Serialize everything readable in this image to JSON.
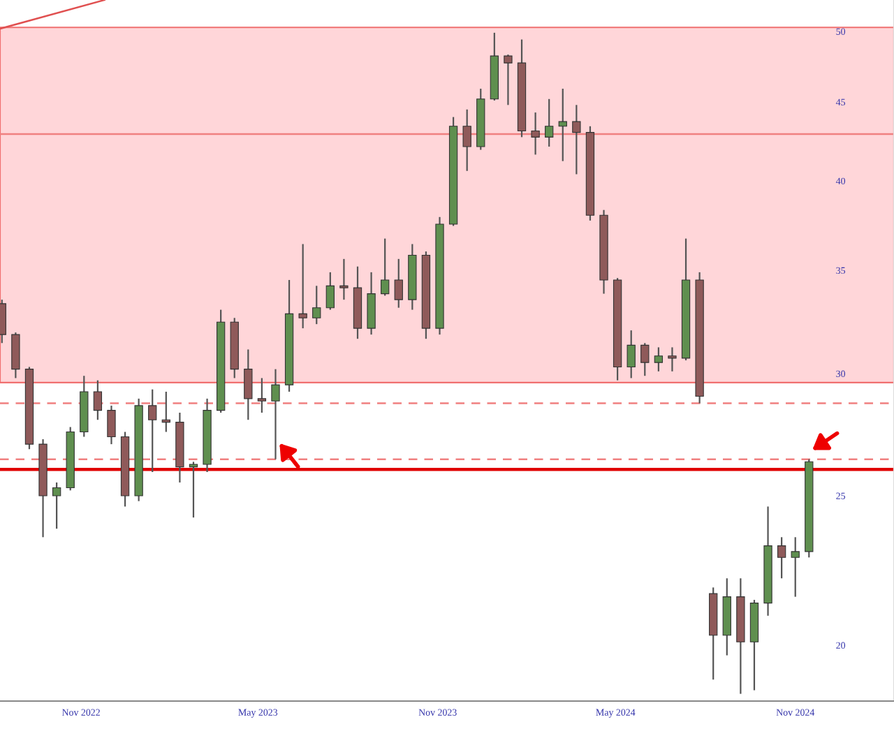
{
  "chart_data": {
    "type": "candlestick",
    "log": true,
    "x": [
      "2022-08-12",
      "2022-08-26",
      "2022-09-09",
      "2022-09-23",
      "2022-10-07",
      "2022-10-21",
      "2022-11-04",
      "2022-11-18",
      "2022-12-02",
      "2022-12-16",
      "2022-12-30",
      "2023-01-13",
      "2023-01-27",
      "2023-02-10",
      "2023-02-24",
      "2023-03-10",
      "2023-03-24",
      "2023-04-07",
      "2023-04-21",
      "2023-05-05",
      "2023-05-19",
      "2023-06-02",
      "2023-06-16",
      "2023-06-30",
      "2023-07-14",
      "2023-07-28",
      "2023-08-11",
      "2023-08-25",
      "2023-09-08",
      "2023-09-22",
      "2023-10-06",
      "2023-10-20",
      "2023-11-03",
      "2023-11-17",
      "2023-12-01",
      "2023-12-15",
      "2023-12-29",
      "2024-01-12",
      "2024-01-26",
      "2024-02-09",
      "2024-02-23",
      "2024-03-08",
      "2024-03-22",
      "2024-04-05",
      "2024-04-19",
      "2024-05-03",
      "2024-05-17",
      "2024-05-31",
      "2024-06-14",
      "2024-06-28",
      "2024-07-12",
      "2024-07-26",
      "2024-08-09",
      "2024-08-23",
      "2024-09-06",
      "2024-09-20",
      "2024-10-04",
      "2024-10-18",
      "2024-11-01",
      "2024-11-15"
    ],
    "ohlc": [
      [
        33.3,
        33.5,
        31.4,
        31.8
      ],
      [
        31.8,
        31.9,
        29.8,
        30.2
      ],
      [
        30.2,
        30.3,
        26.8,
        27.0
      ],
      [
        27.0,
        27.2,
        23.5,
        25.0
      ],
      [
        25.0,
        25.5,
        23.8,
        25.3
      ],
      [
        25.3,
        27.7,
        25.2,
        27.5
      ],
      [
        27.5,
        29.9,
        27.3,
        29.2
      ],
      [
        29.2,
        29.7,
        28.0,
        28.4
      ],
      [
        28.4,
        28.6,
        27.0,
        27.3
      ],
      [
        27.3,
        27.5,
        24.6,
        25.0
      ],
      [
        25.0,
        28.9,
        24.8,
        28.6
      ],
      [
        28.6,
        29.3,
        25.9,
        28.0
      ],
      [
        28.0,
        29.2,
        27.5,
        27.9
      ],
      [
        27.9,
        28.3,
        25.5,
        26.1
      ],
      [
        26.1,
        26.3,
        24.2,
        26.2
      ],
      [
        26.2,
        28.9,
        25.9,
        28.4
      ],
      [
        28.4,
        33.0,
        28.3,
        32.4
      ],
      [
        32.4,
        32.6,
        29.8,
        30.2
      ],
      [
        30.2,
        31.1,
        28.0,
        28.9
      ],
      [
        28.9,
        29.8,
        28.3,
        28.8
      ],
      [
        28.8,
        30.2,
        26.4,
        29.5
      ],
      [
        29.5,
        34.5,
        29.2,
        32.8
      ],
      [
        32.8,
        36.4,
        32.1,
        32.6
      ],
      [
        32.6,
        34.2,
        32.3,
        33.1
      ],
      [
        33.1,
        34.9,
        33.0,
        34.2
      ],
      [
        34.2,
        35.6,
        33.5,
        34.1
      ],
      [
        34.1,
        35.2,
        31.6,
        32.1
      ],
      [
        32.1,
        34.9,
        31.8,
        33.8
      ],
      [
        33.8,
        36.7,
        33.7,
        34.5
      ],
      [
        34.5,
        35.6,
        33.1,
        33.5
      ],
      [
        33.5,
        36.4,
        33.0,
        35.8
      ],
      [
        35.8,
        36.0,
        31.6,
        32.1
      ],
      [
        32.1,
        37.9,
        31.8,
        37.5
      ],
      [
        37.5,
        44.0,
        37.4,
        43.4
      ],
      [
        43.4,
        44.5,
        40.6,
        42.1
      ],
      [
        42.1,
        45.9,
        41.9,
        45.2
      ],
      [
        45.2,
        49.9,
        45.1,
        48.2
      ],
      [
        48.2,
        48.3,
        44.8,
        47.7
      ],
      [
        47.7,
        49.4,
        42.7,
        43.1
      ],
      [
        43.1,
        44.3,
        41.6,
        42.7
      ],
      [
        42.7,
        45.2,
        42.1,
        43.4
      ],
      [
        43.4,
        45.9,
        41.2,
        43.7
      ],
      [
        43.7,
        44.8,
        40.4,
        43.0
      ],
      [
        43.0,
        43.4,
        37.7,
        38.0
      ],
      [
        38.0,
        38.3,
        33.8,
        34.5
      ],
      [
        34.5,
        34.6,
        29.7,
        30.3
      ],
      [
        30.3,
        32.0,
        29.8,
        31.3
      ],
      [
        31.3,
        31.4,
        29.9,
        30.5
      ],
      [
        30.5,
        31.2,
        30.1,
        30.8
      ],
      [
        30.8,
        31.2,
        30.1,
        30.7
      ],
      [
        30.7,
        36.7,
        30.6,
        34.5
      ],
      [
        34.5,
        34.9,
        28.7,
        29.0
      ],
      [
        21.6,
        21.8,
        19.0,
        20.3
      ],
      [
        20.3,
        22.1,
        19.7,
        21.5
      ],
      [
        21.5,
        22.1,
        18.6,
        20.1
      ],
      [
        20.1,
        21.4,
        18.7,
        21.3
      ],
      [
        21.3,
        24.6,
        20.9,
        23.2
      ],
      [
        23.2,
        23.5,
        22.1,
        22.8
      ],
      [
        22.8,
        23.5,
        21.5,
        23.0
      ],
      [
        23.0,
        26.4,
        22.8,
        26.3
      ]
    ],
    "series": [
      {
        "type": "line",
        "x": [
          "2022-08-10",
          "2022-11-25"
        ],
        "values": [
          50.2,
          52.4
        ],
        "color": "#e05050"
      }
    ],
    "bands": [
      {
        "axis": "y",
        "from": 29.6,
        "to": 50.3,
        "color": "#ffd6d9"
      }
    ],
    "ref_lines": [
      {
        "axis": "y",
        "value": 42.9,
        "color": "#f08080",
        "line_style": "solid"
      },
      {
        "axis": "y",
        "value": 28.7,
        "color": "#f08080",
        "line_style": "dashed"
      },
      {
        "axis": "y",
        "value": 26.4,
        "color": "#f08080",
        "line_style": "dashed"
      },
      {
        "axis": "y",
        "value": 26.0,
        "color": "#e00000",
        "line_style": "solid"
      }
    ],
    "xlim": [
      "2022-08-10",
      "2025-02-10"
    ],
    "xticks": [
      {
        "value": "2022-11-01",
        "label": "Nov 2022"
      },
      {
        "value": "2023-05-01",
        "label": "May 2023"
      },
      {
        "value": "2023-11-01",
        "label": "Nov 2023"
      },
      {
        "value": "2024-05-01",
        "label": "May 2024"
      },
      {
        "value": "2024-11-01",
        "label": "Nov 2024"
      }
    ],
    "ylim": [
      18.4,
      52.4
    ],
    "yticks": [
      20,
      25,
      30,
      35,
      40,
      45,
      50
    ],
    "grid": false
  }
}
